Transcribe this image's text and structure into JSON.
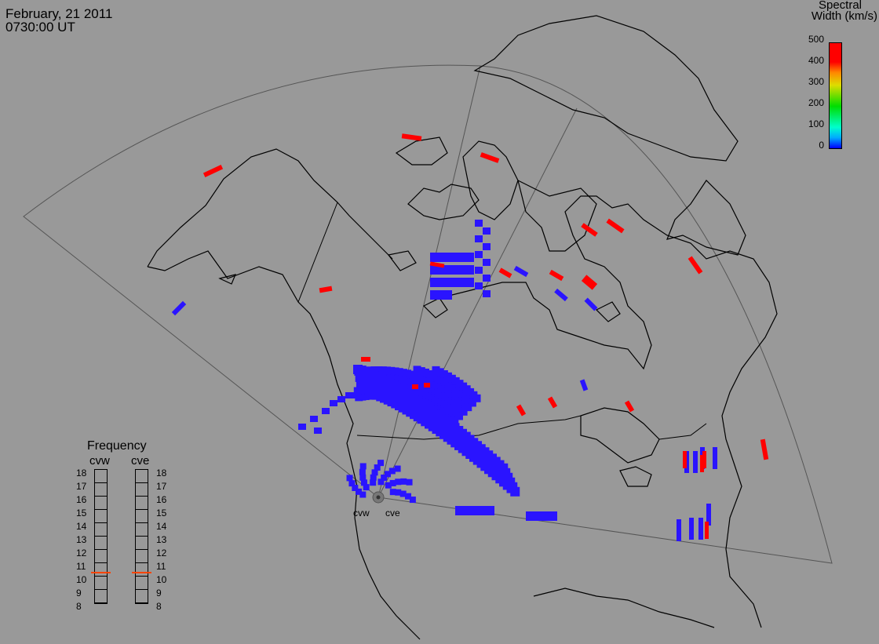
{
  "header": {
    "date": "February, 21 2011",
    "time": "0730:00 UT"
  },
  "colorbar": {
    "title_line1": "Spectral",
    "title_line2": "Width (km/s)",
    "ticks": [
      "500",
      "400",
      "300",
      "200",
      "100",
      "0"
    ],
    "range": [
      0,
      500
    ],
    "colors": [
      "#0000ff",
      "#00ccff",
      "#00dd00",
      "#dddd00",
      "#ff8800",
      "#ff0000"
    ]
  },
  "frequency_panel": {
    "title": "Frequency",
    "radars": [
      "cvw",
      "cve"
    ],
    "scale": [
      "18",
      "17",
      "16",
      "15",
      "14",
      "13",
      "12",
      "11",
      "10",
      "9",
      "8"
    ],
    "selected_mhz": {
      "cvw": 10.8,
      "cve": 10.8
    },
    "marker_color": "#ff4400"
  },
  "radar_labels": {
    "cvw": "cvw",
    "cve": "cve"
  },
  "map_colors": {
    "background": "#999999",
    "coast": "#000000",
    "fov": "#555555",
    "echo_low": "#2a14ff",
    "echo_high": "#ff0000"
  }
}
